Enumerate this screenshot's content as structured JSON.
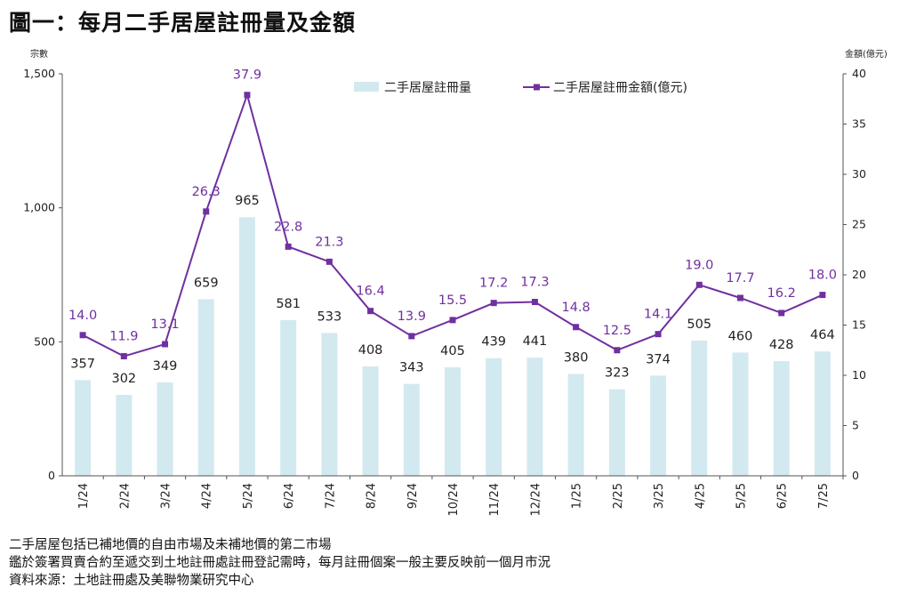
{
  "title": "圖一：每月二手居屋註冊量及金額",
  "notes": [
    "二手居屋包括已補地價的自由市場及未補地價的第二市場",
    "鑑於簽署買賣合約至遞交到土地註冊處註冊登記需時，每月註冊個案一般主要反映前一個月市況",
    "資料來源：土地註冊處及美聯物業研究中心"
  ],
  "colors": {
    "bar": "#d3e9f0",
    "line": "#7030a0",
    "axis": "#555555",
    "text": "#222222"
  },
  "chart_data": {
    "type": "bar+line",
    "categories": [
      "1/24",
      "2/24",
      "3/24",
      "4/24",
      "5/24",
      "6/24",
      "7/24",
      "8/24",
      "9/24",
      "10/24",
      "11/24",
      "12/24",
      "1/25",
      "2/25",
      "3/25",
      "4/25",
      "5/25",
      "6/25",
      "7/25"
    ],
    "series": [
      {
        "name": "二手居屋註冊量",
        "type": "bar",
        "axis": "left",
        "values": [
          357,
          302,
          349,
          659,
          965,
          581,
          533,
          408,
          343,
          405,
          439,
          441,
          380,
          323,
          374,
          505,
          460,
          428,
          464
        ]
      },
      {
        "name": "二手居屋註冊金額(億元)",
        "type": "line",
        "axis": "right",
        "values": [
          14.0,
          11.9,
          13.1,
          26.3,
          37.9,
          22.8,
          21.3,
          16.4,
          13.9,
          15.5,
          17.2,
          17.3,
          14.8,
          12.5,
          14.1,
          19.0,
          17.7,
          16.2,
          18.0
        ]
      }
    ],
    "ylabel_left": "宗數",
    "ylabel_right": "金額(億元)",
    "ylim_left": [
      0,
      1500
    ],
    "yticks_left": [
      "0",
      "500",
      "1,000",
      "1,500"
    ],
    "ylim_right": [
      0,
      40
    ],
    "yticks_right": [
      "0",
      "5",
      "10",
      "15",
      "20",
      "25",
      "30",
      "35",
      "40"
    ],
    "grid": false,
    "legend_position": "top-center"
  }
}
